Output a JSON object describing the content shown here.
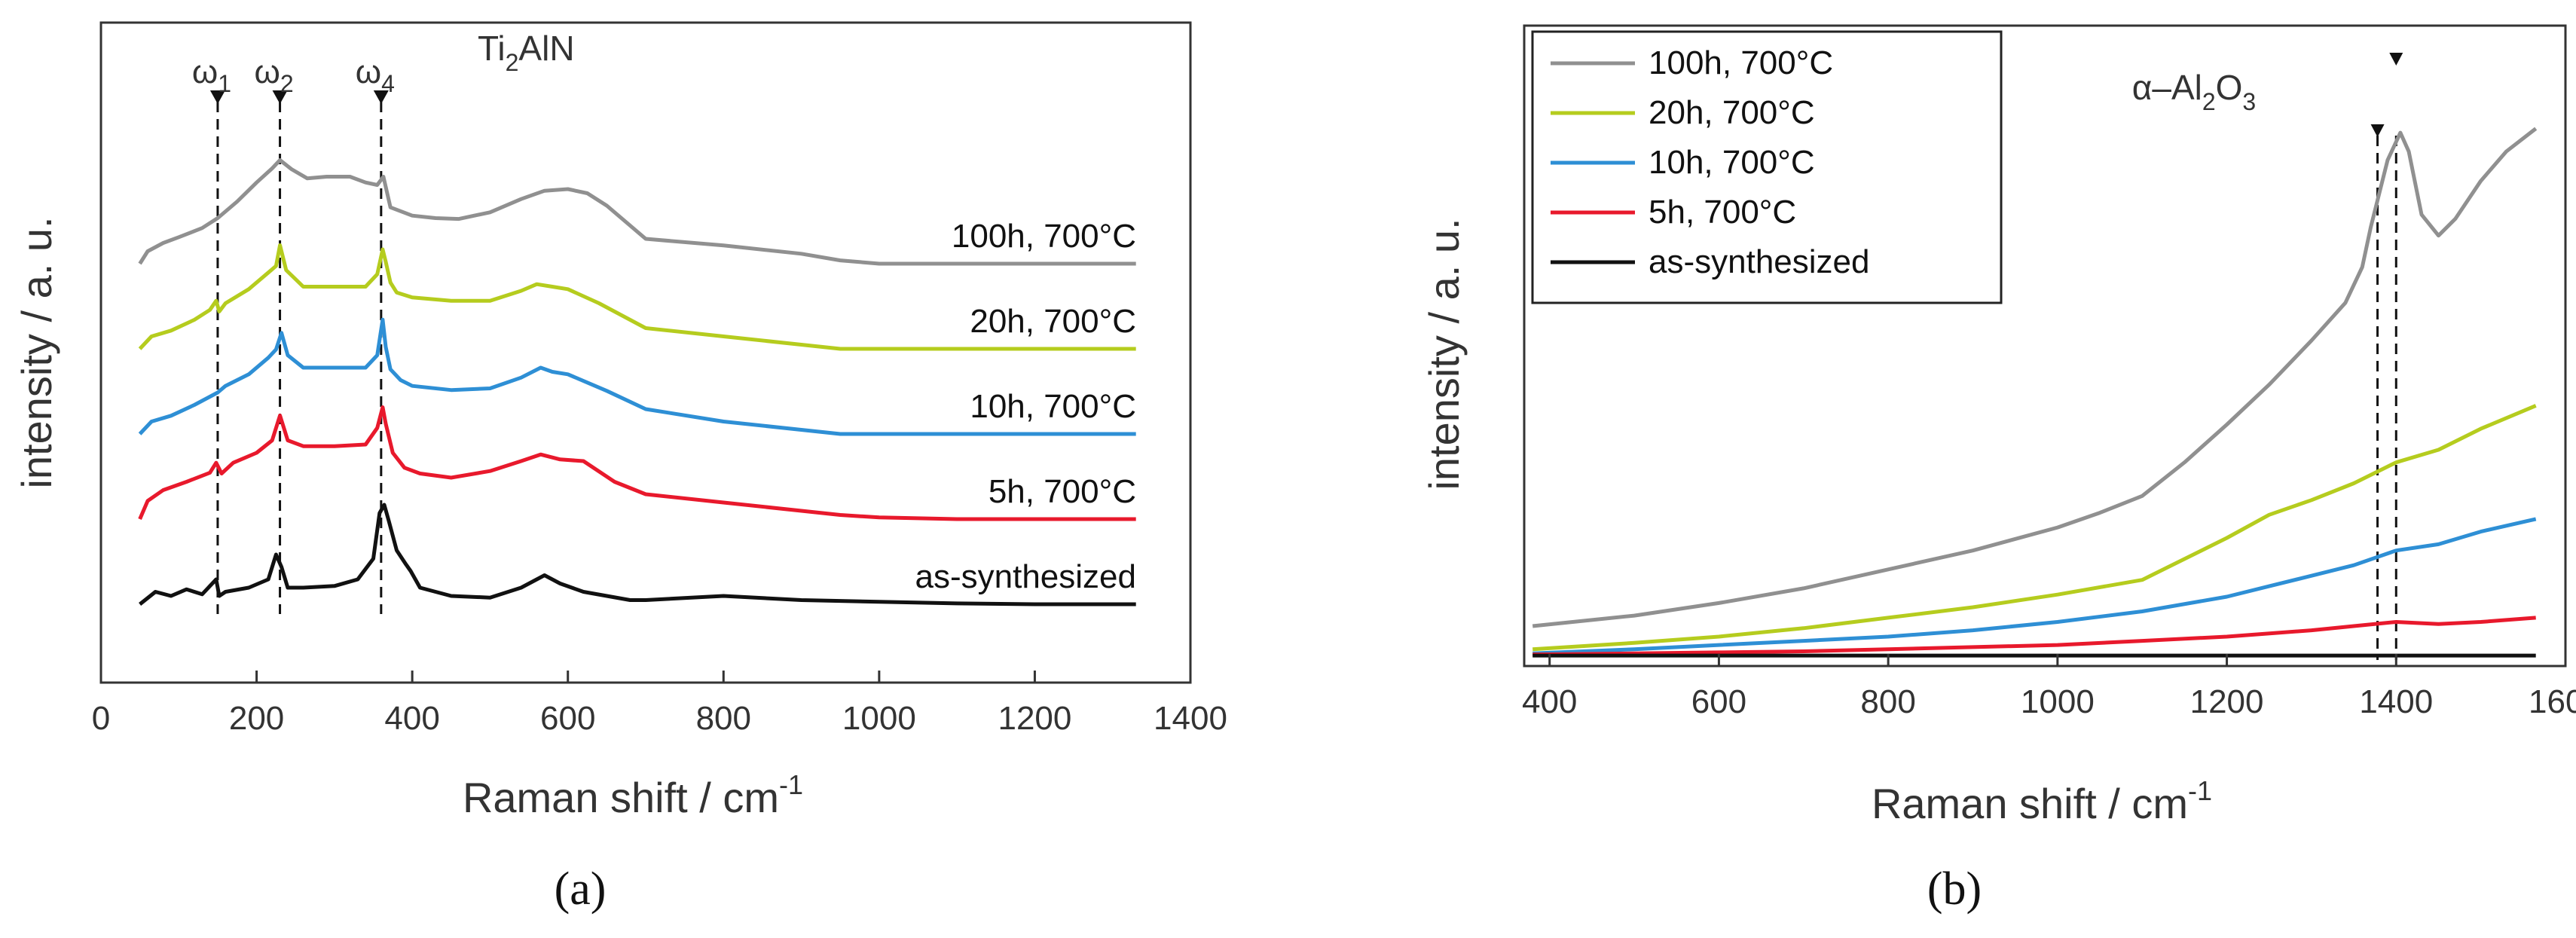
{
  "chart_data": [
    {
      "type": "line",
      "panel": "(a)",
      "xlabel": "Raman shift / cm",
      "xlabel_sup": "-1",
      "ylabel": "intensity / a. u.",
      "xlim": [
        0,
        1400
      ],
      "xticks": [
        0,
        200,
        400,
        600,
        800,
        1000,
        1200,
        1400
      ],
      "peaks": [
        {
          "label": "ω",
          "sub": "1",
          "x": 150
        },
        {
          "label": "ω",
          "sub": "2",
          "x": 230
        },
        {
          "label": "ω",
          "sub": "4",
          "x": 360
        }
      ],
      "phase_label": {
        "main": "Ti",
        "sub": "2",
        "rest": "AlN"
      },
      "series": [
        {
          "name": "100h, 700°C",
          "color": "#909090",
          "offset": 4,
          "x": [
            50,
            60,
            80,
            100,
            130,
            150,
            175,
            200,
            220,
            230,
            245,
            265,
            290,
            320,
            340,
            355,
            363,
            372,
            400,
            430,
            460,
            500,
            540,
            570,
            600,
            625,
            650,
            700,
            800,
            900,
            950,
            1000,
            1100,
            1200,
            1330
          ],
          "y": [
            0.0,
            0.15,
            0.25,
            0.32,
            0.43,
            0.55,
            0.75,
            0.98,
            1.15,
            1.25,
            1.14,
            1.03,
            1.05,
            1.05,
            0.98,
            0.95,
            1.05,
            0.68,
            0.58,
            0.55,
            0.54,
            0.62,
            0.78,
            0.88,
            0.9,
            0.85,
            0.7,
            0.3,
            0.22,
            0.12,
            0.04,
            0.0,
            0.0,
            0.0,
            0.0
          ]
        },
        {
          "name": "20h, 700°C",
          "color": "#b5cc1e",
          "offset": 3,
          "x": [
            50,
            65,
            90,
            120,
            140,
            148,
            152,
            160,
            190,
            215,
            225,
            230,
            238,
            260,
            300,
            340,
            355,
            362,
            366,
            372,
            380,
            400,
            450,
            500,
            540,
            560,
            580,
            600,
            640,
            700,
            800,
            900,
            950,
            1000,
            1100,
            1200,
            1330
          ],
          "y": [
            0.0,
            0.15,
            0.22,
            0.35,
            0.47,
            0.58,
            0.45,
            0.55,
            0.72,
            0.92,
            1.0,
            1.25,
            0.95,
            0.75,
            0.75,
            0.75,
            0.9,
            1.2,
            1.05,
            0.8,
            0.68,
            0.62,
            0.58,
            0.58,
            0.7,
            0.78,
            0.75,
            0.72,
            0.55,
            0.25,
            0.15,
            0.05,
            0.0,
            0.0,
            0.0,
            0.0,
            0.0
          ]
        },
        {
          "name": "10h, 700°C",
          "color": "#2e8fd5",
          "offset": 2,
          "x": [
            50,
            65,
            90,
            120,
            140,
            150,
            160,
            190,
            215,
            225,
            232,
            240,
            260,
            300,
            340,
            355,
            362,
            366,
            372,
            385,
            400,
            450,
            500,
            540,
            565,
            580,
            600,
            650,
            700,
            800,
            900,
            950,
            1000,
            1100,
            1200,
            1330
          ],
          "y": [
            0.0,
            0.15,
            0.22,
            0.35,
            0.45,
            0.5,
            0.58,
            0.72,
            0.92,
            1.02,
            1.22,
            0.95,
            0.8,
            0.8,
            0.8,
            0.95,
            1.38,
            1.05,
            0.78,
            0.65,
            0.58,
            0.53,
            0.55,
            0.68,
            0.8,
            0.75,
            0.72,
            0.52,
            0.3,
            0.15,
            0.05,
            0.0,
            0.0,
            0.0,
            0.0,
            0.0
          ]
        },
        {
          "name": "5h, 700°C",
          "color": "#e8192c",
          "offset": 1,
          "x": [
            50,
            60,
            80,
            110,
            140,
            148,
            155,
            170,
            200,
            220,
            230,
            240,
            260,
            300,
            340,
            355,
            362,
            366,
            375,
            390,
            410,
            450,
            500,
            540,
            565,
            590,
            620,
            660,
            700,
            800,
            900,
            950,
            1000,
            1100,
            1200,
            1330
          ],
          "y": [
            0.0,
            0.22,
            0.35,
            0.45,
            0.56,
            0.68,
            0.55,
            0.68,
            0.8,
            0.95,
            1.25,
            0.95,
            0.88,
            0.88,
            0.9,
            1.1,
            1.35,
            1.15,
            0.8,
            0.62,
            0.55,
            0.5,
            0.58,
            0.7,
            0.78,
            0.72,
            0.7,
            0.45,
            0.3,
            0.2,
            0.1,
            0.05,
            0.02,
            0.0,
            0.0,
            0.0
          ]
        },
        {
          "name": "as-synthesized",
          "color": "#111111",
          "offset": 0,
          "x": [
            50,
            70,
            90,
            110,
            130,
            148,
            152,
            160,
            190,
            215,
            225,
            232,
            240,
            260,
            300,
            330,
            350,
            358,
            364,
            370,
            380,
            392,
            398,
            410,
            450,
            500,
            540,
            560,
            570,
            590,
            620,
            680,
            700,
            800,
            900,
            1000,
            1100,
            1200,
            1330
          ],
          "y": [
            0.0,
            0.15,
            0.1,
            0.18,
            0.12,
            0.3,
            0.1,
            0.15,
            0.2,
            0.3,
            0.6,
            0.45,
            0.2,
            0.2,
            0.22,
            0.3,
            0.55,
            1.1,
            1.2,
            1.0,
            0.65,
            0.48,
            0.4,
            0.2,
            0.1,
            0.08,
            0.2,
            0.3,
            0.35,
            0.25,
            0.15,
            0.05,
            0.05,
            0.1,
            0.05,
            0.03,
            0.01,
            0.0,
            0.0
          ]
        }
      ]
    },
    {
      "type": "line",
      "panel": "(b)",
      "xlabel": "Raman shift / cm",
      "xlabel_sup": "-1",
      "ylabel": "intensity / a. u.",
      "xlim": [
        370,
        1600
      ],
      "ylim": [
        -0.5,
        30
      ],
      "xticks": [
        400,
        600,
        800,
        1000,
        1200,
        1400,
        1600
      ],
      "annotation": {
        "main": "α–Al",
        "sub1": "2",
        "mid": "O",
        "sub2": "3"
      },
      "peaks_x": [
        1378,
        1400
      ],
      "legend_position": "top-left",
      "series": [
        {
          "name": "100h, 700°C",
          "color": "#909090",
          "x": [
            380,
            500,
            600,
            700,
            800,
            900,
            1000,
            1050,
            1100,
            1150,
            1200,
            1250,
            1300,
            1340,
            1360,
            1370,
            1390,
            1405,
            1415,
            1430,
            1450,
            1470,
            1500,
            1530,
            1565
          ],
          "y": [
            1.4,
            1.9,
            2.5,
            3.2,
            4.1,
            5.0,
            6.1,
            6.8,
            7.6,
            9.2,
            11.0,
            12.9,
            15.0,
            16.8,
            18.5,
            20.4,
            23.6,
            24.9,
            24.0,
            21.0,
            20.0,
            20.8,
            22.6,
            24.0,
            25.1
          ]
        },
        {
          "name": "20h, 700°C",
          "color": "#b5cc1e",
          "x": [
            380,
            500,
            600,
            700,
            800,
            900,
            1000,
            1100,
            1150,
            1200,
            1250,
            1300,
            1350,
            1400,
            1450,
            1500,
            1565
          ],
          "y": [
            0.3,
            0.6,
            0.9,
            1.3,
            1.8,
            2.3,
            2.9,
            3.6,
            4.6,
            5.6,
            6.7,
            7.4,
            8.2,
            9.2,
            9.8,
            10.8,
            11.9
          ]
        },
        {
          "name": "10h, 700°C",
          "color": "#2e8fd5",
          "x": [
            380,
            500,
            600,
            700,
            800,
            900,
            1000,
            1100,
            1200,
            1250,
            1300,
            1350,
            1400,
            1450,
            1500,
            1565
          ],
          "y": [
            0.1,
            0.3,
            0.5,
            0.7,
            0.9,
            1.2,
            1.6,
            2.1,
            2.8,
            3.3,
            3.8,
            4.3,
            5.0,
            5.3,
            5.9,
            6.5
          ]
        },
        {
          "name": "5h, 700°C",
          "color": "#e8192c",
          "x": [
            380,
            500,
            600,
            700,
            800,
            900,
            1000,
            1100,
            1200,
            1300,
            1350,
            1400,
            1450,
            1500,
            1565
          ],
          "y": [
            0.05,
            0.1,
            0.15,
            0.2,
            0.3,
            0.4,
            0.5,
            0.7,
            0.9,
            1.2,
            1.4,
            1.6,
            1.5,
            1.6,
            1.8
          ]
        },
        {
          "name": "as-synthesized",
          "color": "#111111",
          "x": [
            380,
            1565
          ],
          "y": [
            0.0,
            0.0
          ]
        }
      ]
    }
  ]
}
